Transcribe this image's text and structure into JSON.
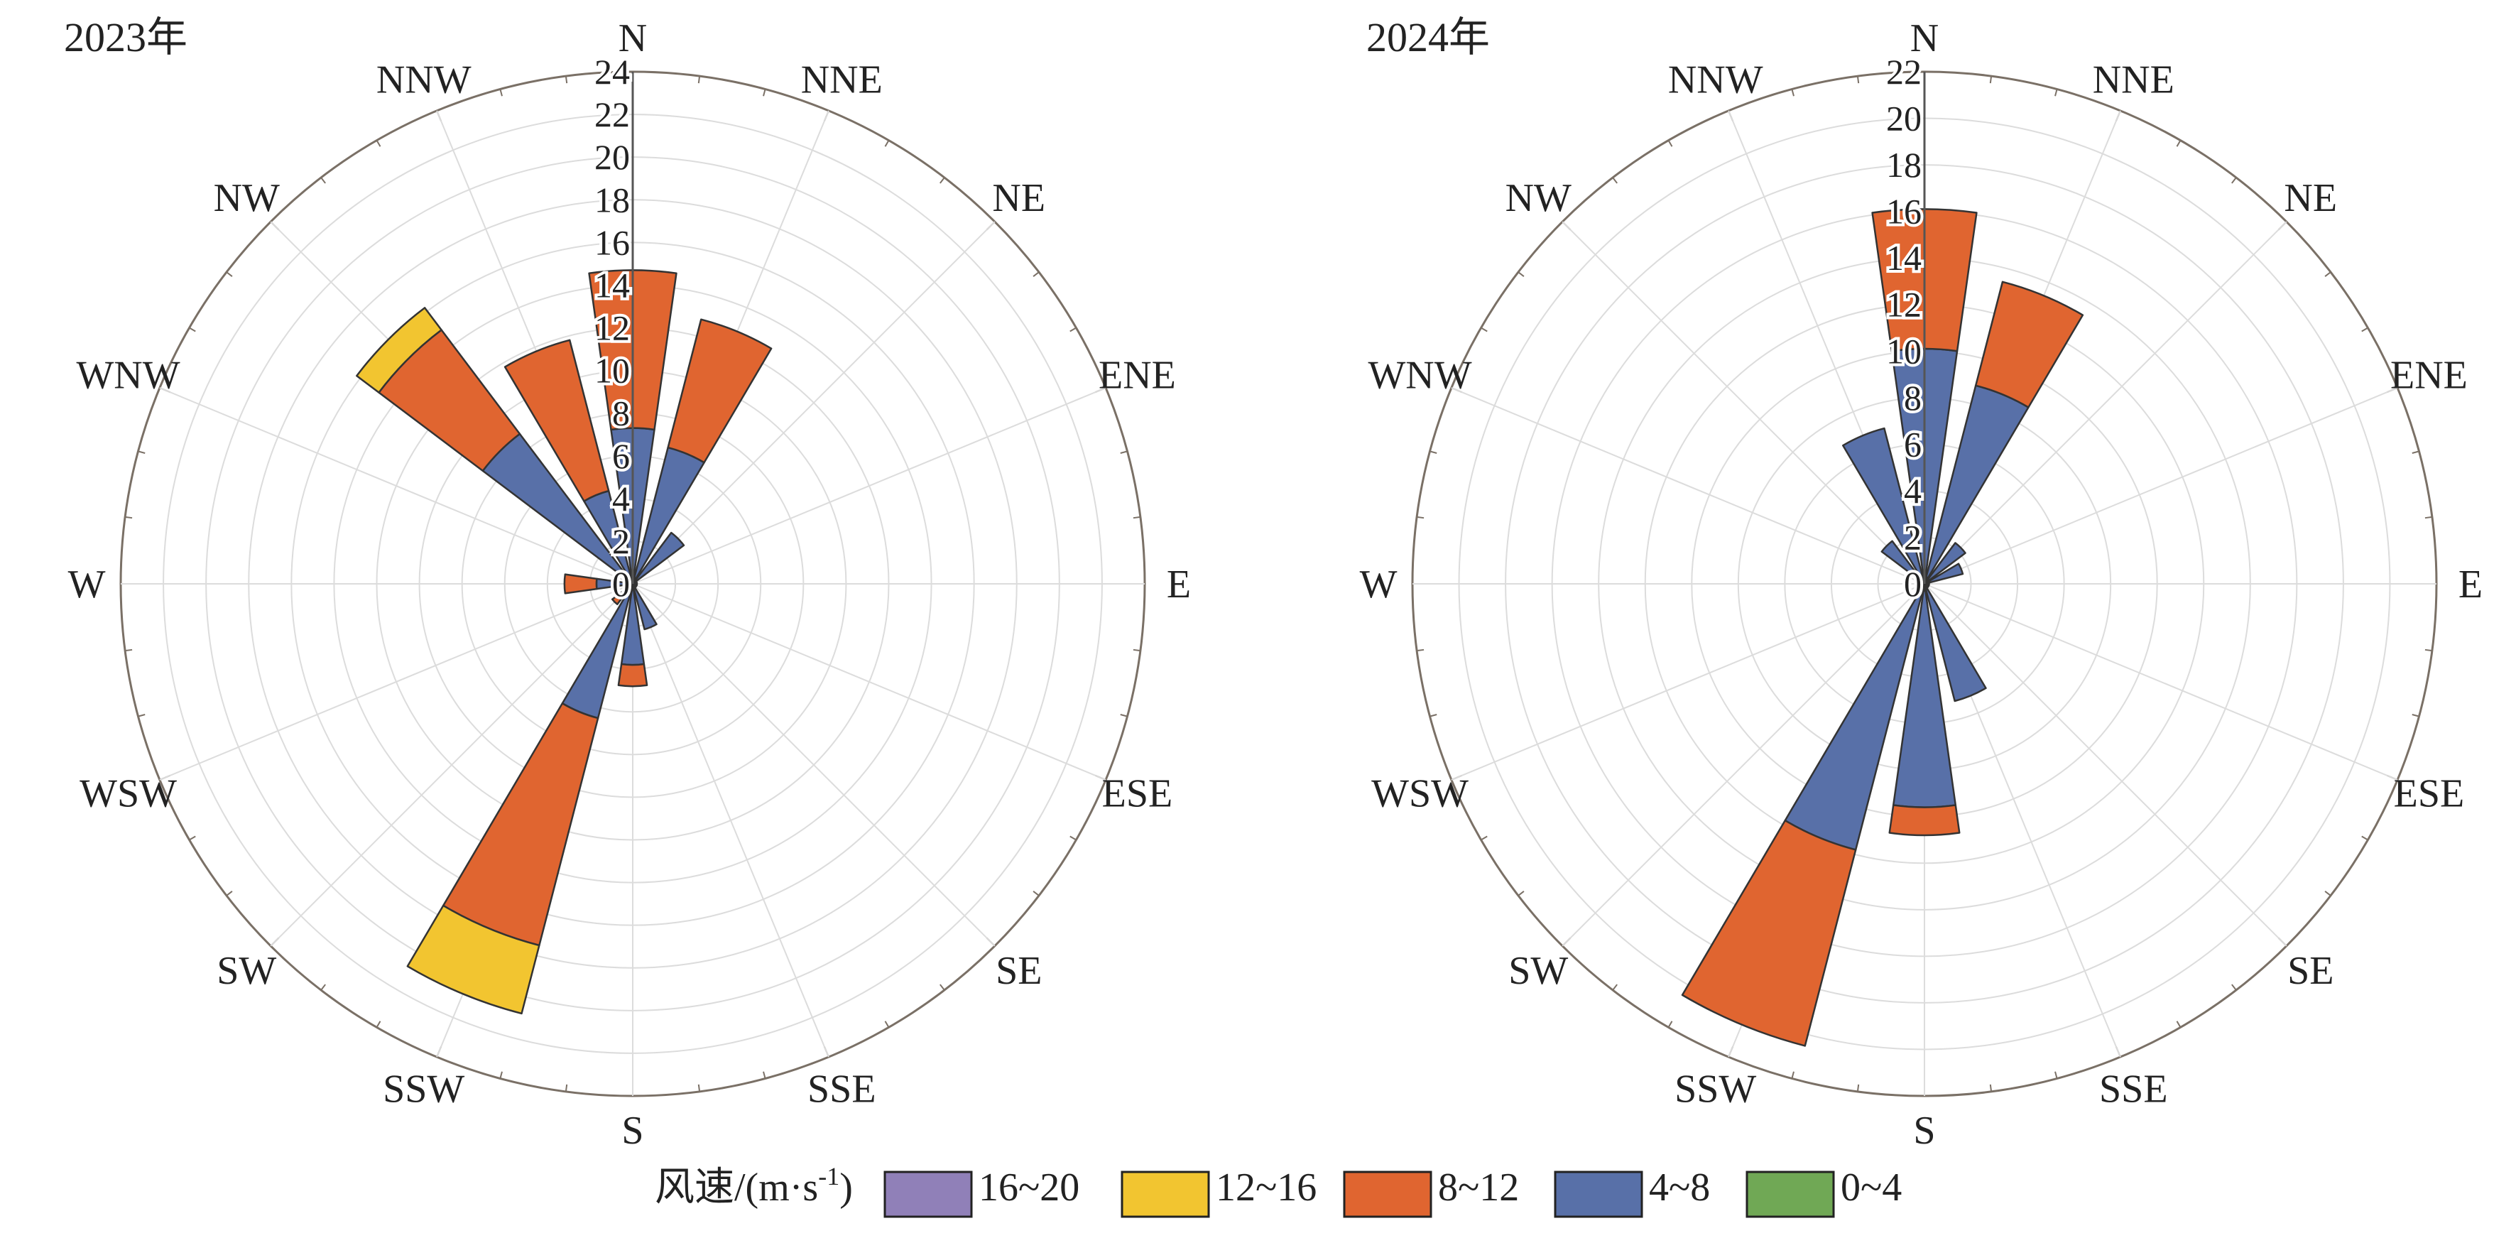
{
  "chart_data": [
    {
      "type": "rose",
      "title": "2023年",
      "directions": [
        "N",
        "NNE",
        "NE",
        "ENE",
        "E",
        "ESE",
        "SE",
        "SSE",
        "S",
        "SSW",
        "SW",
        "WSW",
        "W",
        "WNW",
        "NW",
        "NNW"
      ],
      "r_ticks": [
        "0",
        "2",
        "4",
        "6",
        "8",
        "10",
        "12",
        "14",
        "16",
        "18",
        "20",
        "22",
        "24"
      ],
      "rmax": 24,
      "grid": true,
      "series": [
        {
          "name": "0~4",
          "values": [
            0.3,
            0.3,
            0.2,
            0.2,
            0.2,
            0.2,
            0.2,
            0.2,
            0.3,
            0.3,
            0.2,
            0.2,
            0.2,
            0.2,
            0.3,
            0.3
          ]
        },
        {
          "name": "4~8",
          "values": [
            7.0,
            6.3,
            2.8,
            0,
            0,
            0,
            0,
            2.0,
            3.5,
            6.2,
            0,
            0,
            1.5,
            0,
            8.5,
            4.2
          ]
        },
        {
          "name": "8~12",
          "values": [
            7.4,
            6.2,
            0,
            0,
            0,
            0,
            0,
            0,
            1.0,
            11.0,
            1.0,
            0,
            1.5,
            0,
            6.1,
            7.3
          ]
        },
        {
          "name": "12~16",
          "values": [
            0,
            0,
            0,
            0,
            0,
            0,
            0,
            0,
            0,
            3.3,
            0,
            0,
            0,
            0,
            1.3,
            0
          ]
        },
        {
          "name": "16~20",
          "values": [
            0,
            0,
            0,
            0,
            0,
            0,
            0,
            0,
            0,
            0,
            0,
            0,
            0,
            0,
            0,
            0
          ]
        }
      ]
    },
    {
      "type": "rose",
      "title": "2024年",
      "directions": [
        "N",
        "NNE",
        "NE",
        "ENE",
        "E",
        "ESE",
        "SE",
        "SSE",
        "S",
        "SSW",
        "SW",
        "WSW",
        "W",
        "WNW",
        "NW",
        "NNW"
      ],
      "r_ticks": [
        "0",
        "2",
        "4",
        "6",
        "8",
        "10",
        "12",
        "14",
        "16",
        "18",
        "20",
        "22"
      ],
      "rmax": 22,
      "grid": true,
      "series": [
        {
          "name": "0~4",
          "values": [
            0.3,
            0.3,
            0.2,
            0.2,
            0.2,
            0.2,
            0.2,
            0.2,
            0.3,
            0.3,
            0.2,
            0.2,
            0.2,
            0.2,
            0.3,
            0.3
          ]
        },
        {
          "name": "4~8",
          "values": [
            9.8,
            8.5,
            2.0,
            1.5,
            0,
            0,
            0,
            5.0,
            9.3,
            11.5,
            0,
            0,
            0,
            0,
            2.0,
            6.6
          ]
        },
        {
          "name": "8~12",
          "values": [
            6.0,
            4.6,
            0,
            0,
            0,
            0,
            0,
            0,
            1.2,
            8.7,
            0,
            0,
            0,
            0,
            0,
            0
          ]
        },
        {
          "name": "12~16",
          "values": [
            0,
            0,
            0,
            0,
            0,
            0,
            0,
            0,
            0,
            0,
            0,
            0,
            0,
            0,
            0,
            0
          ]
        },
        {
          "name": "16~20",
          "values": [
            0,
            0,
            0,
            0,
            0,
            0,
            0,
            0,
            0,
            0,
            0,
            0,
            0,
            0,
            0,
            0
          ]
        }
      ]
    }
  ],
  "legend": {
    "title": "风速/(m·s",
    "title_sup": "-1",
    "title_end": ")",
    "items": [
      {
        "label": "16~20",
        "color": "#9080b8"
      },
      {
        "label": "12~16",
        "color": "#f2c530"
      },
      {
        "label": "8~12",
        "color": "#e06530"
      },
      {
        "label": "4~8",
        "color": "#5870a8"
      },
      {
        "label": "0~4",
        "color": "#70a855"
      }
    ]
  }
}
